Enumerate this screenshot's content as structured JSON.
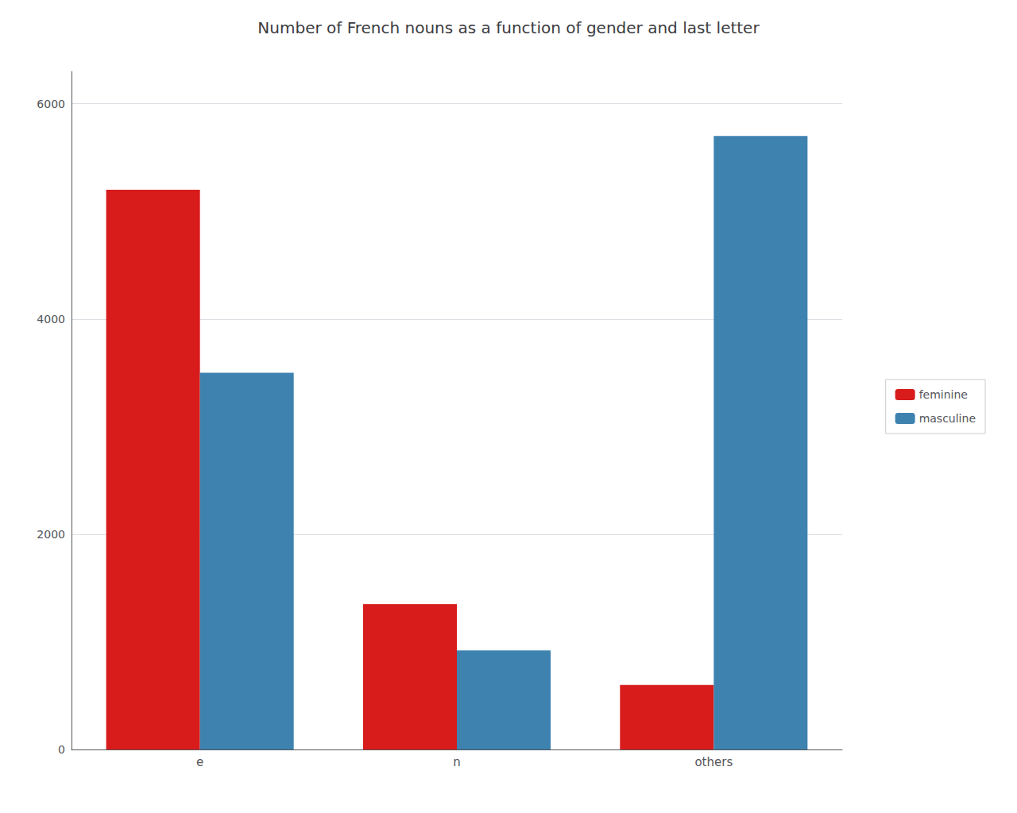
{
  "chart_data": {
    "type": "bar",
    "title": "Number of French nouns as a function of gender and last letter",
    "categories": [
      "e",
      "n",
      "others"
    ],
    "series": [
      {
        "name": "feminine",
        "color": "#D81B1B",
        "values": [
          5200,
          1350,
          600
        ]
      },
      {
        "name": "masculine",
        "color": "#3E82B0",
        "values": [
          3500,
          920,
          5700
        ]
      }
    ],
    "ylim": [
      0,
      6300
    ],
    "yticks": [
      0,
      2000,
      4000,
      6000
    ],
    "grid": true,
    "legend": "right"
  }
}
